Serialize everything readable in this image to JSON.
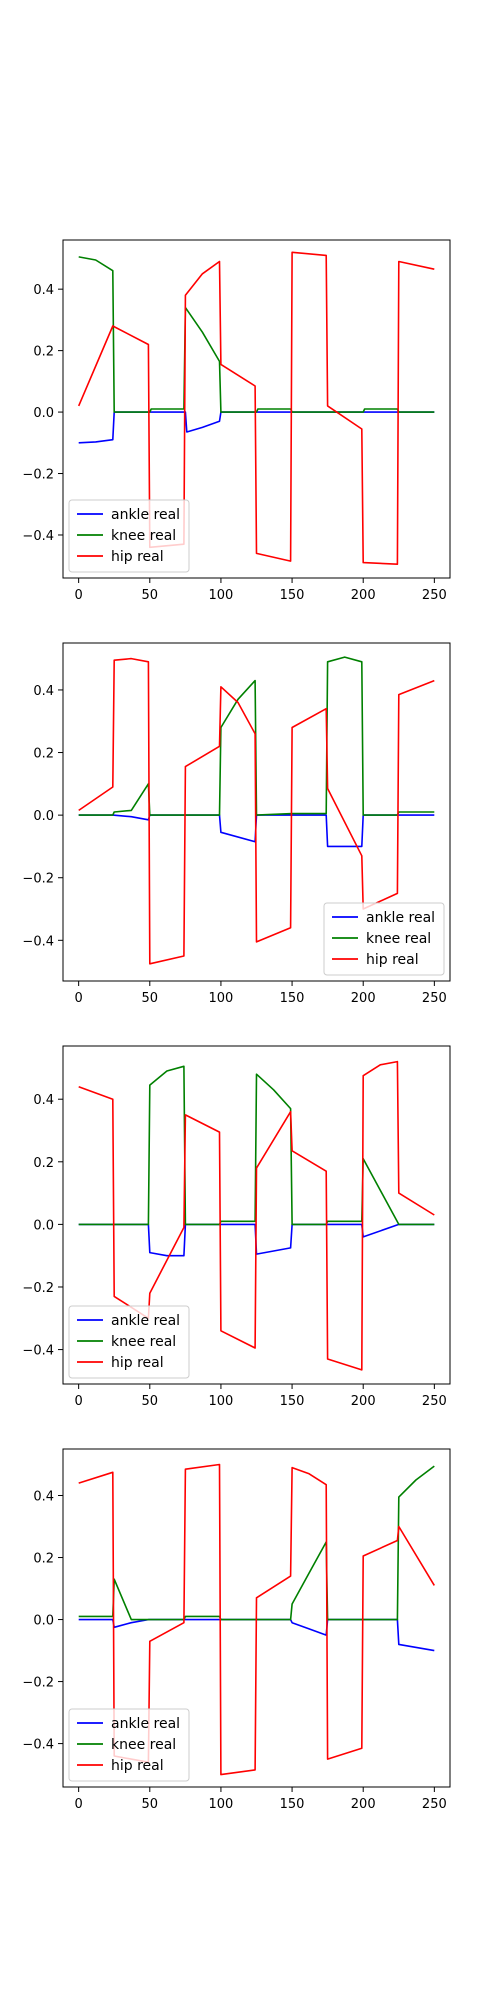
{
  "chart_data": [
    {
      "type": "line",
      "xlim": [
        -11,
        261
      ],
      "ylim": [
        -0.54,
        0.56
      ],
      "xticks": [
        0,
        50,
        100,
        150,
        200,
        250
      ],
      "yticks": [
        -0.4,
        -0.2,
        0.0,
        0.2,
        0.4
      ],
      "xtick_labels": [
        "0",
        "50",
        "100",
        "150",
        "200",
        "250"
      ],
      "ytick_labels": [
        "−0.4",
        "−0.2",
        "0.0",
        "0.2",
        "0.4"
      ],
      "grid": false,
      "legend_position": "lower-left",
      "series": [
        {
          "name": "ankle real",
          "color": "#0000ff",
          "x": [
            0,
            12,
            24,
            25,
            50,
            75,
            76,
            87,
            99,
            100,
            125,
            150,
            175,
            200,
            225,
            226,
            250
          ],
          "y": [
            -0.1,
            -0.097,
            -0.09,
            0.0,
            0.0,
            0.0,
            -0.065,
            -0.05,
            -0.03,
            0.0,
            0.0,
            0.0,
            0.0,
            0.0,
            0.0,
            0.0,
            0.0
          ]
        },
        {
          "name": "knee real",
          "color": "#008000",
          "x": [
            0,
            12,
            24,
            25,
            50,
            51,
            74,
            75,
            87,
            99,
            100,
            125,
            126,
            149,
            150,
            175,
            200,
            201,
            224,
            225,
            250
          ],
          "y": [
            0.505,
            0.495,
            0.46,
            0.0,
            0.0,
            0.01,
            0.01,
            0.34,
            0.26,
            0.165,
            0.0,
            0.0,
            0.01,
            0.01,
            0.0,
            0.0,
            0.0,
            0.01,
            0.01,
            0.0,
            0.0
          ]
        },
        {
          "name": "hip real",
          "color": "#ff0000",
          "x": [
            0,
            24,
            49,
            50,
            74,
            75,
            87,
            99,
            100,
            124,
            125,
            149,
            150,
            174,
            175,
            199,
            200,
            224,
            225,
            250
          ],
          "y": [
            0.02,
            0.28,
            0.22,
            -0.44,
            -0.43,
            0.38,
            0.45,
            0.49,
            0.155,
            0.085,
            -0.46,
            -0.485,
            0.52,
            0.51,
            0.02,
            -0.055,
            -0.49,
            -0.495,
            0.49,
            0.465
          ]
        }
      ]
    },
    {
      "type": "line",
      "xlim": [
        -11,
        261
      ],
      "ylim": [
        -0.53,
        0.55
      ],
      "xticks": [
        0,
        50,
        100,
        150,
        200,
        250
      ],
      "yticks": [
        -0.4,
        -0.2,
        0.0,
        0.2,
        0.4
      ],
      "xtick_labels": [
        "0",
        "50",
        "100",
        "150",
        "200",
        "250"
      ],
      "ytick_labels": [
        "−0.4",
        "−0.2",
        "0.0",
        "0.2",
        "0.4"
      ],
      "grid": false,
      "legend_position": "lower-right",
      "series": [
        {
          "name": "ankle real",
          "color": "#0000ff",
          "x": [
            0,
            24,
            37,
            49,
            50,
            75,
            99,
            100,
            124,
            125,
            150,
            174,
            175,
            199,
            200,
            225,
            250
          ],
          "y": [
            0.0,
            0.0,
            -0.005,
            -0.015,
            0.0,
            0.0,
            0.0,
            -0.055,
            -0.085,
            0.0,
            0.0,
            0.0,
            -0.1,
            -0.1,
            0.0,
            0.0,
            0.0
          ]
        },
        {
          "name": "knee real",
          "color": "#008000",
          "x": [
            0,
            24,
            25,
            37,
            49,
            50,
            75,
            99,
            100,
            112,
            124,
            125,
            150,
            174,
            175,
            187,
            199,
            200,
            224,
            225,
            250
          ],
          "y": [
            0.0,
            0.0,
            0.01,
            0.015,
            0.1,
            0.0,
            0.0,
            0.0,
            0.28,
            0.37,
            0.43,
            0.0,
            0.005,
            0.005,
            0.49,
            0.505,
            0.49,
            0.0,
            0.0,
            0.01,
            0.01
          ]
        },
        {
          "name": "hip real",
          "color": "#ff0000",
          "x": [
            0,
            24,
            25,
            37,
            49,
            50,
            74,
            75,
            99,
            100,
            112,
            124,
            125,
            149,
            150,
            174,
            175,
            199,
            200,
            224,
            225,
            250
          ],
          "y": [
            0.015,
            0.09,
            0.495,
            0.5,
            0.49,
            -0.475,
            -0.45,
            0.155,
            0.22,
            0.41,
            0.36,
            0.26,
            -0.405,
            -0.36,
            0.28,
            0.34,
            0.085,
            -0.13,
            -0.3,
            -0.25,
            0.385,
            0.43
          ]
        }
      ]
    },
    {
      "type": "line",
      "xlim": [
        -11,
        261
      ],
      "ylim": [
        -0.51,
        0.57
      ],
      "xticks": [
        0,
        50,
        100,
        150,
        200,
        250
      ],
      "yticks": [
        -0.4,
        -0.2,
        0.0,
        0.2,
        0.4
      ],
      "xtick_labels": [
        "0",
        "50",
        "100",
        "150",
        "200",
        "250"
      ],
      "ytick_labels": [
        "−0.4",
        "−0.2",
        "0.0",
        "0.2",
        "0.4"
      ],
      "grid": false,
      "legend_position": "lower-left",
      "series": [
        {
          "name": "ankle real",
          "color": "#0000ff",
          "x": [
            0,
            49,
            50,
            62,
            74,
            75,
            100,
            124,
            125,
            137,
            149,
            150,
            175,
            199,
            200,
            225,
            250
          ],
          "y": [
            0.0,
            0.0,
            -0.09,
            -0.1,
            -0.1,
            0.0,
            0.0,
            0.0,
            -0.095,
            -0.085,
            -0.075,
            0.0,
            0.0,
            0.0,
            -0.04,
            0.0,
            0.0
          ]
        },
        {
          "name": "knee real",
          "color": "#008000",
          "x": [
            0,
            49,
            50,
            62,
            74,
            75,
            99,
            100,
            124,
            125,
            137,
            149,
            150,
            174,
            175,
            199,
            200,
            225,
            250
          ],
          "y": [
            0.0,
            0.0,
            0.445,
            0.49,
            0.505,
            0.0,
            0.0,
            0.01,
            0.01,
            0.48,
            0.43,
            0.37,
            0.0,
            0.0,
            0.01,
            0.01,
            0.21,
            0.0,
            0.0
          ]
        },
        {
          "name": "hip real",
          "color": "#ff0000",
          "x": [
            0,
            24,
            25,
            49,
            50,
            74,
            75,
            99,
            100,
            124,
            125,
            149,
            150,
            174,
            175,
            199,
            200,
            212,
            224,
            225,
            250
          ],
          "y": [
            0.44,
            0.4,
            -0.23,
            -0.3,
            -0.22,
            -0.01,
            0.35,
            0.295,
            -0.34,
            -0.395,
            0.18,
            0.36,
            0.235,
            0.17,
            -0.43,
            -0.465,
            0.475,
            0.51,
            0.52,
            0.1,
            0.03
          ]
        }
      ]
    },
    {
      "type": "line",
      "xlim": [
        -11,
        261
      ],
      "ylim": [
        -0.54,
        0.55
      ],
      "xticks": [
        0,
        50,
        100,
        150,
        200,
        250
      ],
      "yticks": [
        -0.4,
        -0.2,
        0.0,
        0.2,
        0.4
      ],
      "xtick_labels": [
        "0",
        "50",
        "100",
        "150",
        "200",
        "250"
      ],
      "ytick_labels": [
        "−0.4",
        "−0.2",
        "0.0",
        "0.2",
        "0.4"
      ],
      "grid": false,
      "legend_position": "lower-left",
      "series": [
        {
          "name": "ankle real",
          "color": "#0000ff",
          "x": [
            0,
            24,
            25,
            37,
            49,
            75,
            100,
            125,
            149,
            150,
            162,
            174,
            175,
            200,
            224,
            225,
            250
          ],
          "y": [
            0.0,
            0.0,
            -0.025,
            -0.01,
            0.0,
            0.0,
            0.0,
            0.0,
            0.0,
            -0.01,
            -0.03,
            -0.05,
            0.0,
            0.0,
            0.0,
            -0.08,
            -0.1
          ]
        },
        {
          "name": "knee real",
          "color": "#008000",
          "x": [
            0,
            24,
            25,
            37,
            49,
            74,
            75,
            99,
            100,
            149,
            150,
            162,
            174,
            175,
            224,
            225,
            237,
            250
          ],
          "y": [
            0.01,
            0.01,
            0.13,
            0.0,
            0.0,
            0.0,
            0.01,
            0.01,
            0.0,
            0.0,
            0.05,
            0.15,
            0.25,
            0.0,
            0.0,
            0.395,
            0.45,
            0.495
          ]
        },
        {
          "name": "hip real",
          "color": "#ff0000",
          "x": [
            0,
            24,
            25,
            49,
            50,
            74,
            75,
            99,
            100,
            124,
            125,
            149,
            150,
            162,
            174,
            175,
            199,
            200,
            224,
            225,
            250
          ],
          "y": [
            0.44,
            0.475,
            -0.44,
            -0.46,
            -0.07,
            -0.01,
            0.485,
            0.5,
            -0.5,
            -0.485,
            0.07,
            0.14,
            0.49,
            0.47,
            0.435,
            -0.45,
            -0.415,
            0.205,
            0.255,
            0.3,
            0.11
          ]
        }
      ]
    }
  ]
}
